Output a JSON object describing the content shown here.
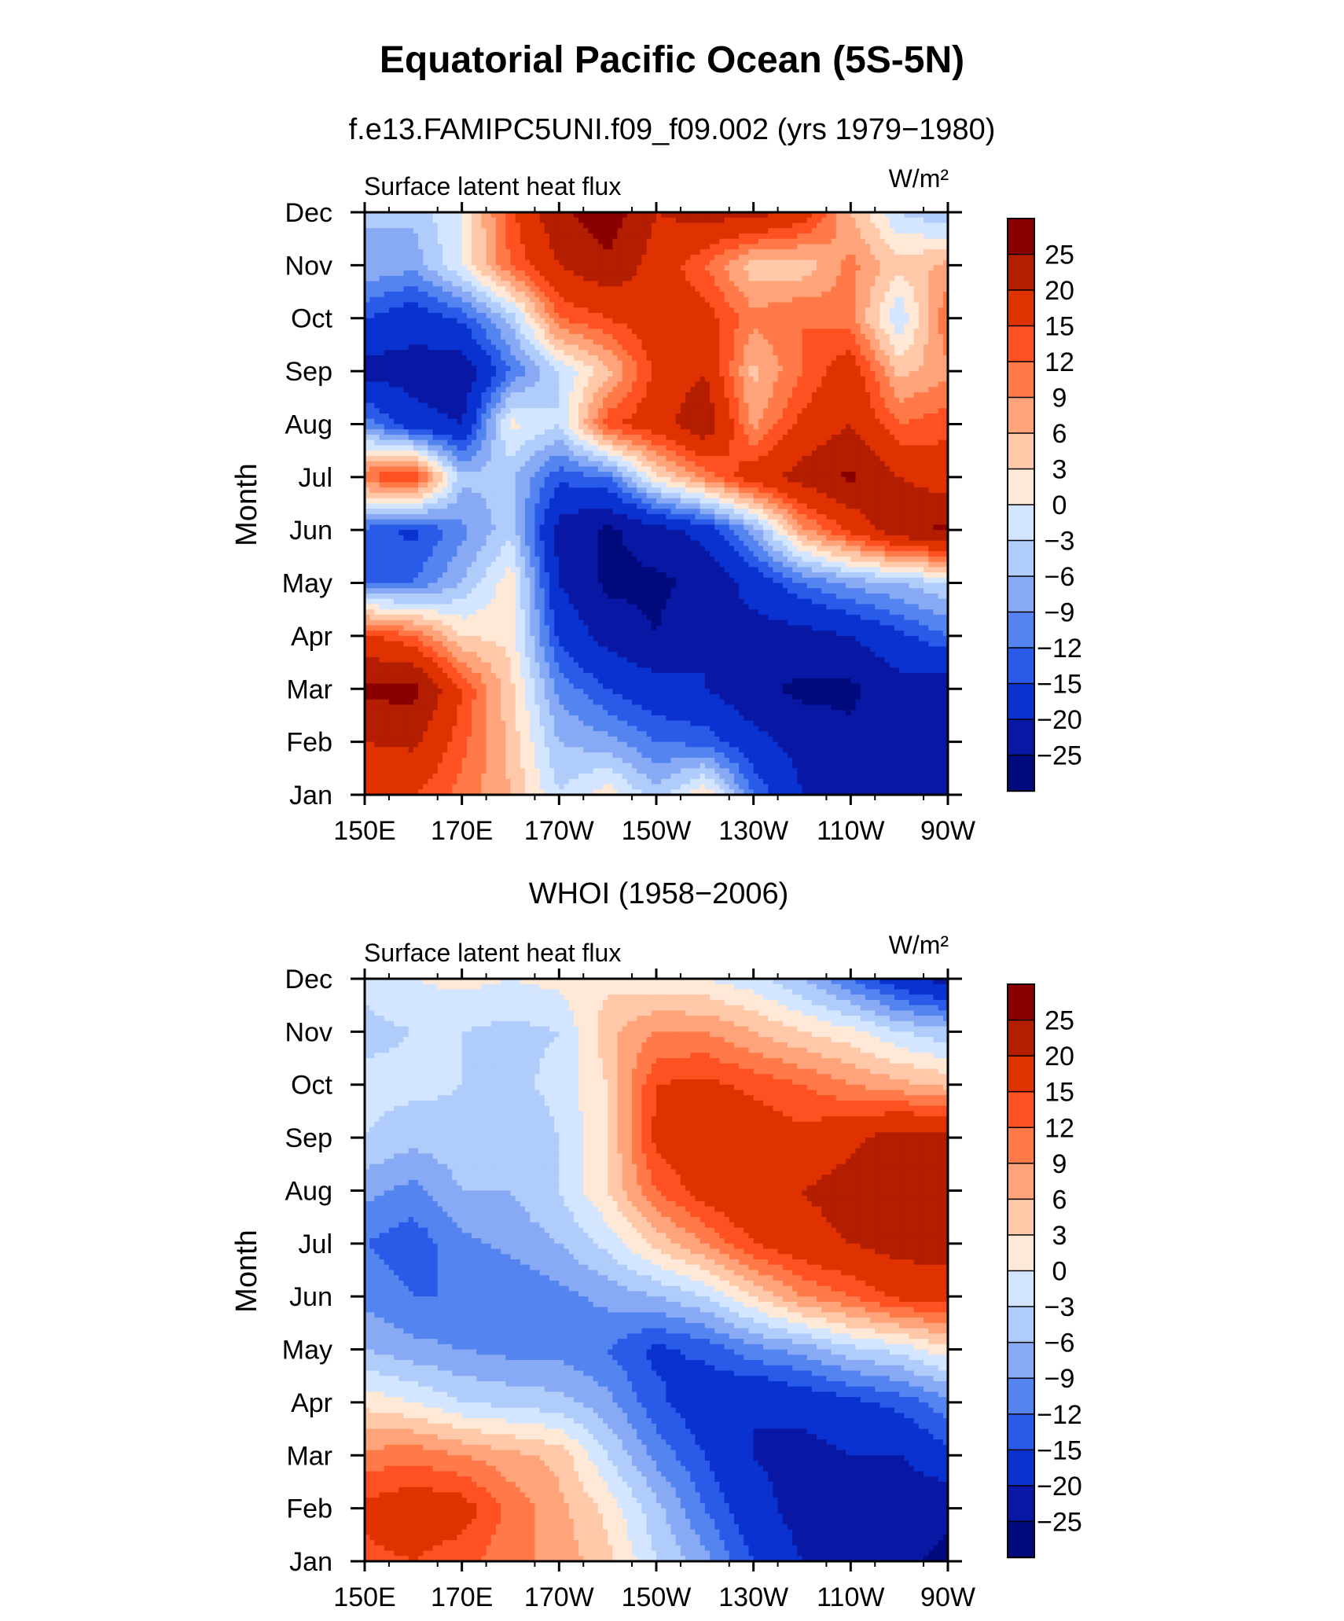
{
  "figure": {
    "title": "Equatorial Pacific Ocean (5S-5N)",
    "subtitle_top": "f.e13.FAMIPC5UNI.f09_f09.002 (yrs 1979−1980)",
    "subtitle_bottom": "WHOI (1958−2006)"
  },
  "colorbar": {
    "labels": [
      "25",
      "20",
      "15",
      "12",
      "9",
      "6",
      "3",
      "0",
      "−3",
      "−6",
      "−9",
      "−12",
      "−15",
      "−20",
      "−25"
    ],
    "colors_top_to_bottom": [
      "#8a0000",
      "#b31d00",
      "#e03200",
      "#ff5022",
      "#ff7a48",
      "#ffa47a",
      "#ffc8a8",
      "#ffe8d6",
      "#d4e6ff",
      "#b0ccfb",
      "#88aaf5",
      "#5484f0",
      "#2a5ae8",
      "#0a32d0",
      "#0818a4",
      "#000a7c"
    ]
  },
  "chart_data": [
    {
      "type": "heatmap",
      "panel_title": "f.e13.FAMIPC5UNI.f09_f09.002 (yrs 1979−1980)",
      "left_label": "Surface latent heat flux",
      "right_label": "W/m²",
      "ylabel": "Month",
      "xlabel": "",
      "x_ticks": [
        "150E",
        "170E",
        "170W",
        "150W",
        "130W",
        "110W",
        "90W"
      ],
      "y_ticks": [
        "Jan",
        "Feb",
        "Mar",
        "Apr",
        "May",
        "Jun",
        "Jul",
        "Aug",
        "Sep",
        "Oct",
        "Nov",
        "Dec"
      ],
      "x": [
        150,
        160,
        170,
        180,
        190,
        200,
        210,
        220,
        230,
        240,
        250,
        260,
        270
      ],
      "y": [
        "Jan",
        "Feb",
        "Mar",
        "Apr",
        "May",
        "Jun",
        "Jul",
        "Aug",
        "Sep",
        "Oct",
        "Nov",
        "Dec"
      ],
      "z": [
        [
          16,
          15,
          11,
          6,
          -3,
          2,
          -5,
          3,
          -12,
          -20,
          -22,
          -24,
          -20
        ],
        [
          20,
          21,
          13,
          5,
          -6,
          -8,
          -12,
          -13,
          -18,
          -22,
          -24,
          -22,
          -24
        ],
        [
          26,
          27,
          15,
          4,
          -10,
          -15,
          -18,
          -20,
          -24,
          -26,
          -26,
          -22,
          -24
        ],
        [
          16,
          12,
          3,
          2,
          -16,
          -22,
          -25,
          -20,
          -22,
          -22,
          -20,
          -16,
          -12
        ],
        [
          -12,
          -12,
          -6,
          2,
          -20,
          -26,
          -26,
          -24,
          -18,
          -12,
          -8,
          -6,
          -3
        ],
        [
          -13,
          -16,
          -10,
          -4,
          -22,
          -26,
          -22,
          -18,
          -8,
          8,
          16,
          24,
          26
        ],
        [
          12,
          16,
          -5,
          -5,
          -14,
          -12,
          2,
          10,
          18,
          22,
          26,
          20,
          17
        ],
        [
          -10,
          -18,
          -20,
          1,
          -3,
          14,
          18,
          24,
          8,
          16,
          20,
          12,
          14
        ],
        [
          -22,
          -22,
          -24,
          -12,
          -3,
          5,
          16,
          20,
          5,
          12,
          18,
          5,
          8
        ],
        [
          -15,
          -18,
          -14,
          -5,
          12,
          15,
          18,
          17,
          10,
          12,
          10,
          -3,
          12
        ],
        [
          -6,
          -8,
          0,
          12,
          20,
          24,
          18,
          12,
          4,
          4,
          10,
          4,
          7
        ],
        [
          -6,
          -5,
          0,
          14,
          24,
          28,
          20,
          22,
          22,
          18,
          6,
          -3,
          -6
        ]
      ]
    },
    {
      "type": "heatmap",
      "panel_title": "WHOI (1958−2006)",
      "left_label": "Surface latent heat flux",
      "right_label": "W/m²",
      "ylabel": "Month",
      "xlabel": "",
      "x_ticks": [
        "150E",
        "170E",
        "170W",
        "150W",
        "130W",
        "110W",
        "90W"
      ],
      "y_ticks": [
        "Jan",
        "Feb",
        "Mar",
        "Apr",
        "May",
        "Jun",
        "Jul",
        "Aug",
        "Sep",
        "Oct",
        "Nov",
        "Dec"
      ],
      "x": [
        150,
        160,
        170,
        180,
        190,
        200,
        210,
        220,
        230,
        240,
        250,
        260,
        270
      ],
      "y": [
        "Jan",
        "Feb",
        "Mar",
        "Apr",
        "May",
        "Jun",
        "Jul",
        "Aug",
        "Sep",
        "Oct",
        "Nov",
        "Dec"
      ],
      "z": [
        [
          14,
          15,
          13,
          10,
          8,
          4,
          -3,
          -8,
          -15,
          -20,
          -22,
          -24,
          -26
        ],
        [
          16,
          18,
          17,
          11,
          7,
          2,
          -5,
          -12,
          -18,
          -22,
          -24,
          -24,
          -24
        ],
        [
          10,
          11,
          9,
          7,
          5,
          -3,
          -10,
          -15,
          -20,
          -22,
          -20,
          -20,
          -16
        ],
        [
          2,
          0,
          -3,
          -4,
          -5,
          -8,
          -14,
          -18,
          -20,
          -18,
          -16,
          -14,
          -10
        ],
        [
          -6,
          -8,
          -9,
          -10,
          -10,
          -12,
          -16,
          -14,
          -10,
          -8,
          -4,
          -2,
          2
        ],
        [
          -10,
          -12,
          -12,
          -12,
          -10,
          -8,
          -6,
          -3,
          3,
          9,
          12,
          16,
          17
        ],
        [
          -12,
          -14,
          -10,
          -8,
          -6,
          -2,
          4,
          9,
          15,
          18,
          20,
          22,
          22
        ],
        [
          -8,
          -10,
          -6,
          -6,
          -3,
          3,
          12,
          17,
          20,
          20,
          22,
          24,
          24
        ],
        [
          -3,
          -5,
          -4,
          -6,
          -3,
          3,
          16,
          18,
          18,
          16,
          19,
          22,
          22
        ],
        [
          -2,
          -2,
          -3,
          -4,
          -2,
          3,
          15,
          16,
          14,
          12,
          9,
          7,
          5
        ],
        [
          -4,
          -3,
          -3,
          -4,
          -3,
          5,
          9,
          9,
          6,
          3,
          1,
          -3,
          -5
        ],
        [
          -2,
          0,
          1,
          0,
          1,
          2,
          1,
          0,
          -2,
          -6,
          -12,
          -18,
          -22
        ]
      ]
    }
  ]
}
